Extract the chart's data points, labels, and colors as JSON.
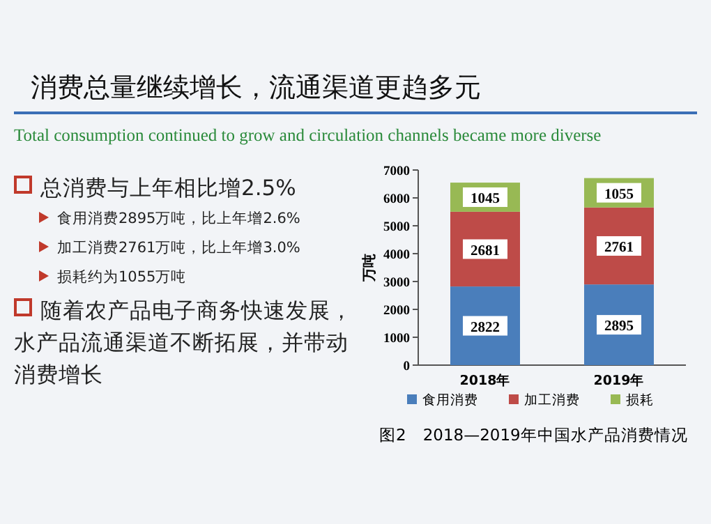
{
  "chart_data": {
    "type": "bar",
    "stacked": true,
    "title": "消费总量继续增长，流通渠道更趋多元",
    "subtitle": "Total consumption continued to grow and  circulation channels became more diverse",
    "ylabel": "万吨",
    "categories": [
      "2018年",
      "2019年"
    ],
    "series": [
      {
        "name": "食用消费",
        "color": "#4a7ebb",
        "values": [
          2822,
          2895
        ]
      },
      {
        "name": "加工消费",
        "color": "#be4b48",
        "values": [
          2681,
          2761
        ]
      },
      {
        "name": "损耗",
        "color": "#98b954",
        "values": [
          1045,
          1055
        ]
      }
    ],
    "ylim": [
      0,
      7000
    ],
    "yticks": [
      0,
      1000,
      2000,
      3000,
      4000,
      5000,
      6000,
      7000
    ],
    "data_labels": true,
    "legend": "bottom",
    "annotations": [
      "总消费与上年相比增2.5%",
      "食用消费2895万吨，比上年增2.6%",
      "加工消费2761万吨，比上年增3.0%",
      "损耗约为1055万吨",
      "随着农产品电子商务快速发展，水产品流通渠道不断拓展，并带动消费增长",
      "图2　2018—2019年中国水产品消费情况"
    ]
  }
}
